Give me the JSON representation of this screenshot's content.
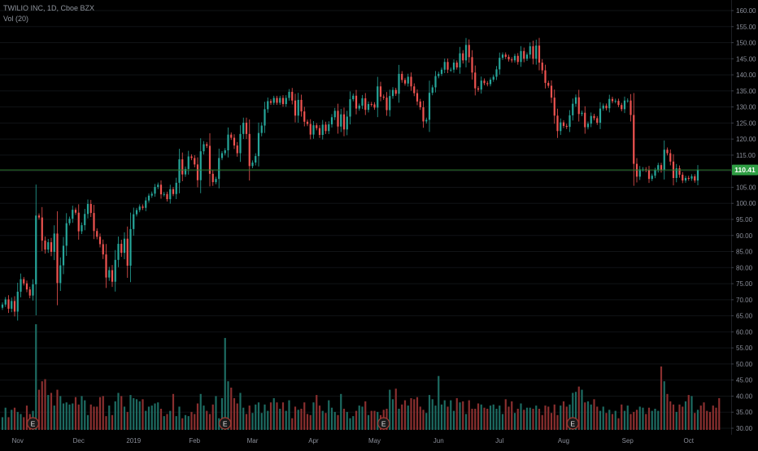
{
  "legend": {
    "symbol": "TWILIO INC, 1D, Cboe BZX",
    "volume": "Vol (20)"
  },
  "price_badge": "110.41",
  "colors": {
    "background": "#000000",
    "up": "#26a69a",
    "down": "#ef5350",
    "up_vol": "#1d6b62",
    "down_vol": "#8a2f2f",
    "price_line": "#2e7d32",
    "badge": "#2f9e44",
    "text": "#8a8e99",
    "grid": "#111316"
  },
  "chart_data": {
    "type": "candlestick",
    "title": "TWILIO INC, 1D, Cboe BZX",
    "ylim": [
      30,
      160
    ],
    "y_ticks": [
      30,
      35,
      40,
      45,
      50,
      55,
      60,
      65,
      70,
      75,
      80,
      85,
      90,
      95,
      100,
      105,
      110,
      115,
      120,
      125,
      130,
      135,
      140,
      145,
      150,
      155,
      160
    ],
    "y_tick_labels": [
      "30.00",
      "35.00",
      "40.00",
      "45.00",
      "50.00",
      "55.00",
      "60.00",
      "65.00",
      "70.00",
      "75.00",
      "80.00",
      "85.00",
      "90.00",
      "95.00",
      "100.00",
      "105.00",
      "110.00",
      "115.00",
      "120.00",
      "125.00",
      "130.00",
      "135.00",
      "140.00",
      "145.00",
      "150.00",
      "155.00",
      "160.00"
    ],
    "x_labels": [
      {
        "label": "Nov",
        "i": 5
      },
      {
        "label": "Dec",
        "i": 25
      },
      {
        "label": "2019",
        "i": 43
      },
      {
        "label": "Feb",
        "i": 63
      },
      {
        "label": "Mar",
        "i": 82
      },
      {
        "label": "Apr",
        "i": 102
      },
      {
        "label": "May",
        "i": 122
      },
      {
        "label": "Jun",
        "i": 143
      },
      {
        "label": "Jul",
        "i": 163
      },
      {
        "label": "Aug",
        "i": 184
      },
      {
        "label": "Sep",
        "i": 205
      },
      {
        "label": "Oct",
        "i": 225
      }
    ],
    "earnings_marker": "E",
    "earnings_i": [
      10,
      73,
      125,
      187
    ],
    "last_price": 110.41,
    "close": [
      68.5,
      70.1,
      67.2,
      69.6,
      66.3,
      72.5,
      76.4,
      75.1,
      73.2,
      71.3,
      74.8,
      96.2,
      95.6,
      88.4,
      85.6,
      87.9,
      84.9,
      90.6,
      75.2,
      80.7,
      86.8,
      93.8,
      95.2,
      98.0,
      97.1,
      91.3,
      93.2,
      96.7,
      99.8,
      97.0,
      91.4,
      89.6,
      87.3,
      84.1,
      76.9,
      79.2,
      75.6,
      82.4,
      87.4,
      84.6,
      89.0,
      80.6,
      92.0,
      96.6,
      97.9,
      99.0,
      98.6,
      100.9,
      102.4,
      103.0,
      105.1,
      105.8,
      102.8,
      102.9,
      101.3,
      104.4,
      102.9,
      106.4,
      113.7,
      109.0,
      110.7,
      114.6,
      114.1,
      112.1,
      107.2,
      116.2,
      118.4,
      117.9,
      109.2,
      106.6,
      107.6,
      114.1,
      115.6,
      116.5,
      121.4,
      120.4,
      118.0,
      115.6,
      121.6,
      125.1,
      121.6,
      111.6,
      112.7,
      114.7,
      121.9,
      124.2,
      129.3,
      131.8,
      131.3,
      132.8,
      131.3,
      132.8,
      130.9,
      132.8,
      134.7,
      132.0,
      127.3,
      132.2,
      128.6,
      125.4,
      124.7,
      121.4,
      124.3,
      123.4,
      121.3,
      124.5,
      122.5,
      124.6,
      126.8,
      128.8,
      123.9,
      127.7,
      123.0,
      127.0,
      132.4,
      133.5,
      129.5,
      130.4,
      132.7,
      129.1,
      130.9,
      130.8,
      129.8,
      136.4,
      133.2,
      132.9,
      129.0,
      133.4,
      135.3,
      134.1,
      140.3,
      138.4,
      137.3,
      139.4,
      136.4,
      134.3,
      131.7,
      129.9,
      125.5,
      126.0,
      134.4,
      136.1,
      139.6,
      140.3,
      141.6,
      144.0,
      141.6,
      141.6,
      143.8,
      142.3,
      146.7,
      144.5,
      149.3,
      145.5,
      140.7,
      135.8,
      135.4,
      138.2,
      137.4,
      137.1,
      138.5,
      139.4,
      141.7,
      145.3,
      146.3,
      145.6,
      144.8,
      144.5,
      145.9,
      144.0,
      147.4,
      145.0,
      146.3,
      148.9,
      145.0,
      149.1,
      143.8,
      141.4,
      137.5,
      136.6,
      132.9,
      127.3,
      122.5,
      125.2,
      124.1,
      123.8,
      127.4,
      131.0,
      133.0,
      127.8,
      128.2,
      123.7,
      124.8,
      127.2,
      126.5,
      125.1,
      129.5,
      130.4,
      129.6,
      132.5,
      131.8,
      131.9,
      130.6,
      129.3,
      132.0,
      132.0,
      127.5,
      112.3,
      108.3,
      110.6,
      110.6,
      110.4,
      107.6,
      108.6,
      110.3,
      111.9,
      110.3,
      116.7,
      115.6,
      113.0,
      107.9,
      110.9,
      108.9,
      107.1,
      107.9,
      107.7,
      108.4,
      107.1,
      110.41
    ],
    "volume_relative": [
      0.12,
      0.21,
      0.12,
      0.19,
      0.21,
      0.17,
      0.15,
      0.12,
      0.23,
      0.15,
      0.18,
      1.0,
      0.38,
      0.46,
      0.48,
      0.33,
      0.35,
      0.23,
      0.38,
      0.32,
      0.25,
      0.26,
      0.24,
      0.25,
      0.31,
      0.24,
      0.32,
      0.28,
      0.14,
      0.24,
      0.22,
      0.22,
      0.31,
      0.32,
      0.13,
      0.23,
      0.14,
      0.27,
      0.35,
      0.32,
      0.22,
      0.17,
      0.33,
      0.3,
      0.29,
      0.27,
      0.29,
      0.18,
      0.22,
      0.23,
      0.25,
      0.26,
      0.2,
      0.13,
      0.15,
      0.18,
      0.34,
      0.13,
      0.22,
      0.11,
      0.14,
      0.13,
      0.17,
      0.15,
      0.25,
      0.34,
      0.23,
      0.18,
      0.15,
      0.24,
      0.32,
      0.11,
      0.3,
      0.87,
      0.46,
      0.4,
      0.3,
      0.25,
      0.35,
      0.21,
      0.15,
      0.23,
      0.16,
      0.24,
      0.26,
      0.16,
      0.24,
      0.18,
      0.26,
      0.3,
      0.26,
      0.2,
      0.26,
      0.18,
      0.28,
      0.11,
      0.22,
      0.19,
      0.2,
      0.26,
      0.15,
      0.14,
      0.26,
      0.33,
      0.23,
      0.18,
      0.16,
      0.28,
      0.21,
      0.17,
      0.14,
      0.34,
      0.2,
      0.17,
      0.11,
      0.13,
      0.18,
      0.23,
      0.22,
      0.27,
      0.14,
      0.18,
      0.18,
      0.17,
      0.14,
      0.19,
      0.2,
      0.38,
      0.29,
      0.39,
      0.2,
      0.24,
      0.28,
      0.23,
      0.3,
      0.29,
      0.31,
      0.22,
      0.19,
      0.16,
      0.33,
      0.29,
      0.23,
      0.51,
      0.24,
      0.28,
      0.22,
      0.28,
      0.18,
      0.3,
      0.26,
      0.27,
      0.15,
      0.28,
      0.2,
      0.2,
      0.25,
      0.24,
      0.21,
      0.2,
      0.23,
      0.24,
      0.2,
      0.23,
      0.15,
      0.29,
      0.22,
      0.27,
      0.16,
      0.2,
      0.25,
      0.19,
      0.21,
      0.21,
      0.2,
      0.23,
      0.2,
      0.14,
      0.23,
      0.22,
      0.16,
      0.24,
      0.14,
      0.23,
      0.27,
      0.22,
      0.24,
      0.35,
      0.36,
      0.41,
      0.38,
      0.26,
      0.27,
      0.24,
      0.29,
      0.22,
      0.18,
      0.22,
      0.16,
      0.19,
      0.15,
      0.18,
      0.11,
      0.24,
      0.18,
      0.23,
      0.15,
      0.17,
      0.19,
      0.22,
      0.21,
      0.15,
      0.21,
      0.18,
      0.2,
      0.18,
      0.6,
      0.46,
      0.34,
      0.27,
      0.24,
      0.17,
      0.24,
      0.22,
      0.27,
      0.33,
      0.32,
      0.16,
      0.19,
      0.23,
      0.26,
      0.18,
      0.17,
      0.23,
      0.21,
      0.3
    ]
  }
}
